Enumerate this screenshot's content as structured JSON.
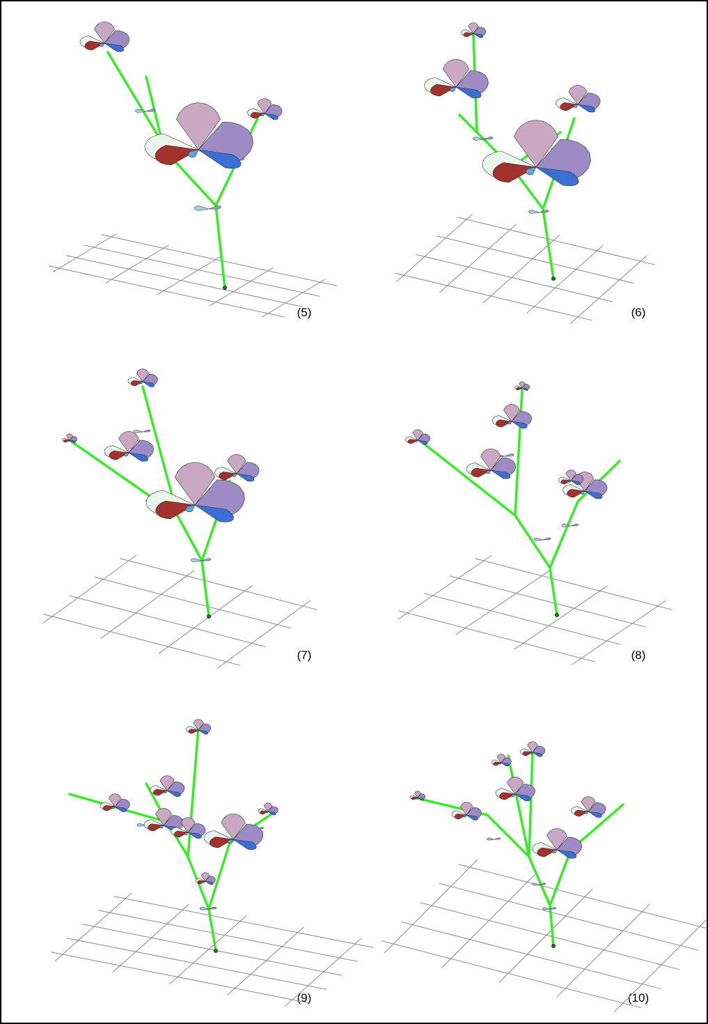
{
  "panels": [
    {
      "label": "(5)"
    },
    {
      "label": "(6)"
    },
    {
      "label": "(7)"
    },
    {
      "label": "(8)"
    },
    {
      "label": "(9)"
    },
    {
      "label": "(10)"
    }
  ]
}
